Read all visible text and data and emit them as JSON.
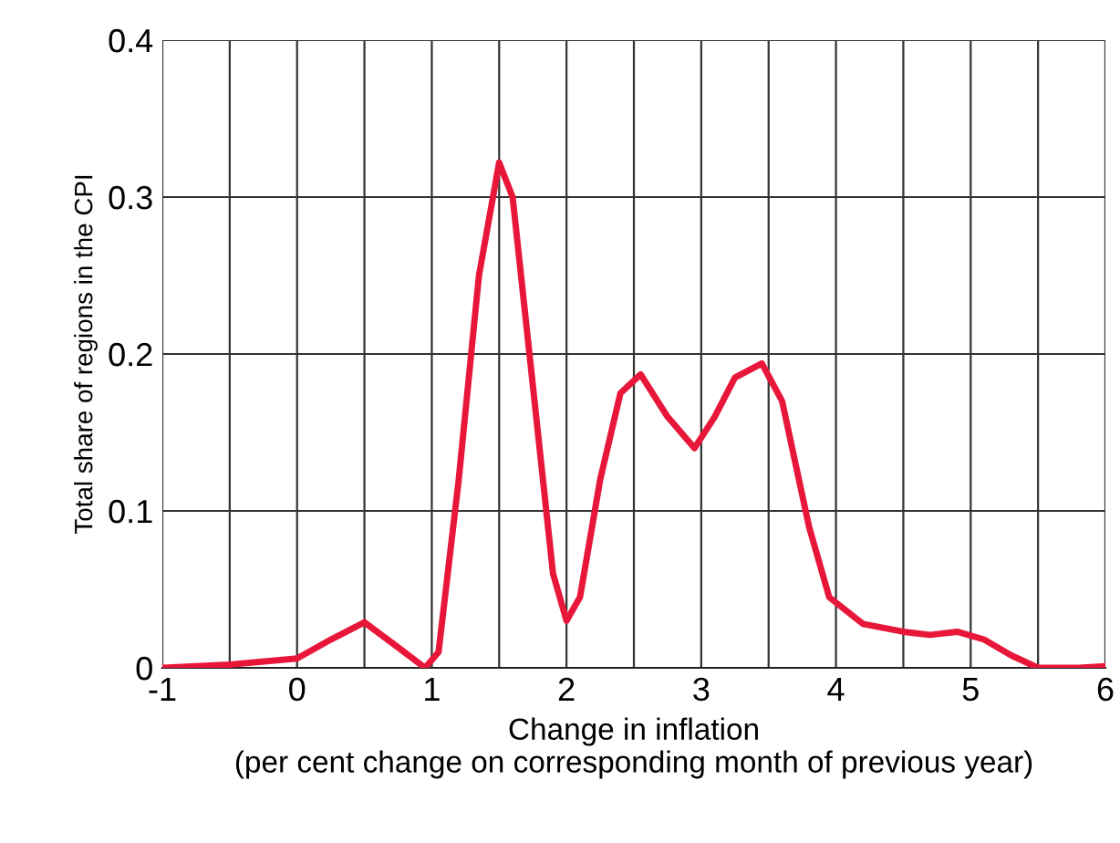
{
  "chart_data": {
    "type": "line",
    "xlabel": "Change in inflation\n(per cent change on corresponding month of previous year)",
    "ylabel": "Total share of regions in the CPI",
    "series": [
      {
        "color": "#e8173a",
        "x": [
          -1,
          -0.5,
          0,
          0.25,
          0.5,
          0.75,
          0.95,
          1.05,
          1.2,
          1.35,
          1.5,
          1.6,
          1.75,
          1.9,
          2.0,
          2.1,
          2.25,
          2.4,
          2.55,
          2.75,
          2.95,
          3.1,
          3.25,
          3.45,
          3.6,
          3.8,
          3.95,
          4.2,
          4.5,
          4.7,
          4.9,
          5.1,
          5.3,
          5.5,
          5.8,
          6.0
        ],
        "values": [
          0,
          0.002,
          0.006,
          0.018,
          0.029,
          0.013,
          0.0,
          0.01,
          0.12,
          0.25,
          0.322,
          0.3,
          0.18,
          0.06,
          0.03,
          0.045,
          0.12,
          0.175,
          0.187,
          0.16,
          0.14,
          0.16,
          0.185,
          0.194,
          0.17,
          0.09,
          0.045,
          0.028,
          0.023,
          0.021,
          0.023,
          0.018,
          0.008,
          0.0,
          0.0,
          0.001
        ]
      }
    ],
    "xlim": [
      -1,
      6
    ],
    "ylim": [
      0,
      0.4
    ],
    "xticks": [
      -1,
      0,
      1,
      2,
      3,
      4,
      5,
      6
    ],
    "yticks": [
      0,
      0.1,
      0.2,
      0.3,
      0.4
    ],
    "grid": true,
    "marker": "none",
    "line_style": "solid",
    "legend": false
  }
}
